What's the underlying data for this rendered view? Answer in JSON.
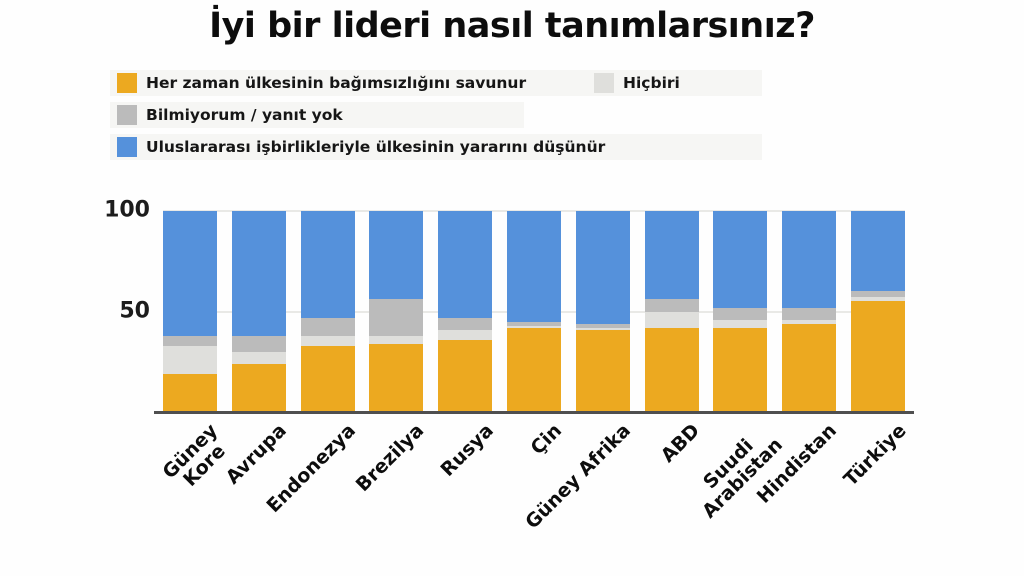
{
  "title": "İyi bir lideri nasıl tanımlarsınız?",
  "legend": {
    "items": [
      {
        "key": "savunur",
        "label": "Her zaman ülkesinin bağımsızlığını savunur",
        "color": "#ECA920"
      },
      {
        "key": "hicbiri",
        "label": "Hiçbiri",
        "color": "#DFDFDC"
      },
      {
        "key": "bilmiyorum",
        "label": "Bilmiyorum / yanıt yok",
        "color": "#BBBBBB"
      },
      {
        "key": "isbirligi",
        "label": "Uluslararası işbirlikleriyle ülkesinin yararını düşünür",
        "color": "#5591DB"
      }
    ]
  },
  "chart_data": {
    "type": "bar",
    "stacked": true,
    "title": "İyi bir lideri nasıl tanımlarsınız?",
    "xlabel": "",
    "ylabel": "",
    "ylim": [
      0,
      100
    ],
    "yticks": [
      50,
      100
    ],
    "grid": true,
    "legend_position": "top-left",
    "categories": [
      "Güney Kore",
      "Avrupa",
      "Endonezya",
      "Brezilya",
      "Rusya",
      "Çin",
      "Güney Afrika",
      "ABD",
      "Suudi Arabistan",
      "Hindistan",
      "Türkiye"
    ],
    "tick_labels": [
      "Güney Kore",
      "Avrupa",
      "Endonezya",
      "Brezilya",
      "Rusya",
      "Çin",
      "Güney Afrika",
      "ABD",
      "Suudi\nArabistan",
      "Hindistan",
      "Türkiye"
    ],
    "series": [
      {
        "name": "Her zaman ülkesinin bağımsızlığını savunur",
        "color": "#ECA920",
        "values": [
          19,
          24,
          33,
          34,
          36,
          42,
          41,
          42,
          42,
          44,
          55
        ]
      },
      {
        "name": "Hiçbiri",
        "color": "#DFDFDC",
        "values": [
          14,
          6,
          5,
          4,
          5,
          1,
          1,
          8,
          4,
          2,
          2
        ]
      },
      {
        "name": "Bilmiyorum / yanıt yok",
        "color": "#BBBBBB",
        "values": [
          5,
          8,
          9,
          18,
          6,
          2,
          2,
          6,
          6,
          6,
          3
        ]
      },
      {
        "name": "Uluslararası işbirlikleriyle ülkesinin yararını düşünür",
        "color": "#5591DB",
        "values": [
          62,
          62,
          53,
          44,
          53,
          55,
          56,
          44,
          48,
          48,
          40
        ]
      }
    ]
  }
}
